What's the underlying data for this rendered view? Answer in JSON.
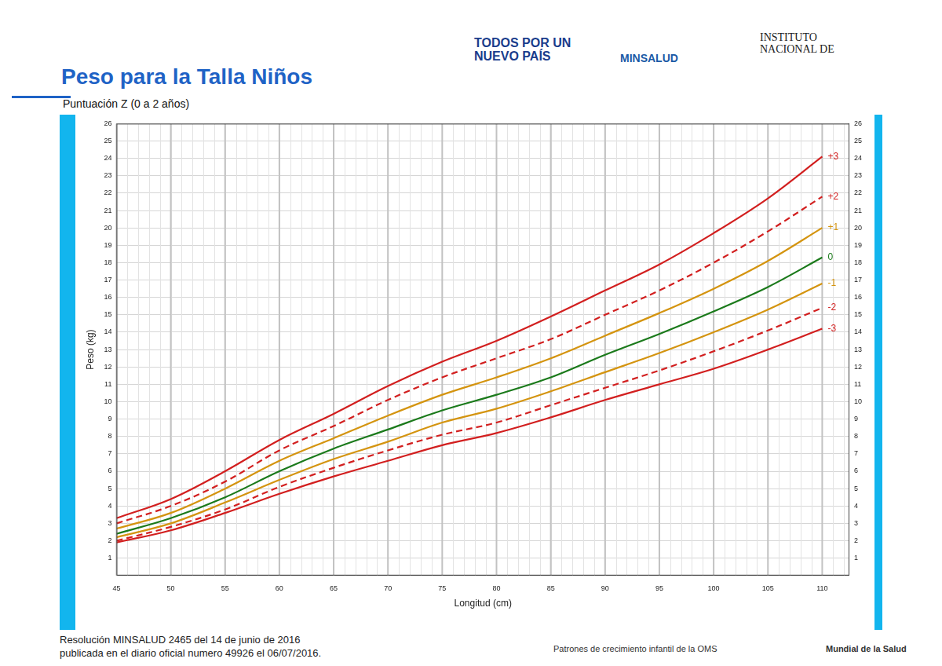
{
  "header": {
    "title": "Peso para la Talla Niños",
    "subtitle": "Puntuación Z (0 a 2 años)",
    "logos": [
      "TODOS POR UN NUEVO PAÍS",
      "MINSALUD",
      "INSTITUTO NACIONAL DE"
    ]
  },
  "chart_data": {
    "type": "line",
    "x_label": "Longitud (cm)",
    "y_label": "Peso (kg)",
    "x": [
      45,
      50,
      55,
      60,
      65,
      70,
      75,
      80,
      85,
      90,
      95,
      100,
      105,
      110
    ],
    "series": [
      {
        "name": "+3",
        "color": "#d21f1f",
        "line_style": "solid",
        "values": [
          3.3,
          4.4,
          6.0,
          7.8,
          9.3,
          10.9,
          12.3,
          13.5,
          14.9,
          16.4,
          17.9,
          19.7,
          21.7,
          24.1
        ]
      },
      {
        "name": "+2",
        "color": "#d21f1f",
        "line_style": "dashed",
        "values": [
          3.0,
          4.0,
          5.4,
          7.2,
          8.6,
          10.1,
          11.4,
          12.5,
          13.6,
          15.0,
          16.4,
          18.0,
          19.8,
          21.8
        ]
      },
      {
        "name": "+1",
        "color": "#d4940f",
        "line_style": "solid",
        "values": [
          2.7,
          3.6,
          5.0,
          6.6,
          7.9,
          9.2,
          10.4,
          11.4,
          12.5,
          13.8,
          15.1,
          16.5,
          18.1,
          20.0
        ]
      },
      {
        "name": "0",
        "color": "#1b7a1b",
        "line_style": "solid",
        "values": [
          2.4,
          3.3,
          4.5,
          6.0,
          7.3,
          8.4,
          9.5,
          10.4,
          11.4,
          12.7,
          13.9,
          15.2,
          16.6,
          18.3
        ]
      },
      {
        "name": "-1",
        "color": "#d4940f",
        "line_style": "solid",
        "values": [
          2.2,
          3.0,
          4.2,
          5.5,
          6.7,
          7.7,
          8.8,
          9.6,
          10.6,
          11.7,
          12.8,
          14.0,
          15.3,
          16.8
        ]
      },
      {
        "name": "-2",
        "color": "#d21f1f",
        "line_style": "dashed",
        "values": [
          2.0,
          2.8,
          3.8,
          5.1,
          6.2,
          7.2,
          8.1,
          8.8,
          9.8,
          10.8,
          11.8,
          12.9,
          14.1,
          15.4
        ]
      },
      {
        "name": "-3",
        "color": "#d21f1f",
        "line_style": "solid",
        "values": [
          1.9,
          2.6,
          3.6,
          4.7,
          5.7,
          6.6,
          7.5,
          8.2,
          9.1,
          10.1,
          11.0,
          11.9,
          13.0,
          14.2
        ]
      }
    ],
    "xlim": [
      45,
      112.5
    ],
    "xticks": [
      45,
      50,
      55,
      60,
      65,
      70,
      75,
      80,
      85,
      90,
      95,
      100,
      105,
      110
    ],
    "ylim": [
      0,
      26
    ],
    "yticks": [
      1,
      2,
      3,
      4,
      5,
      6,
      7,
      8,
      9,
      10,
      11,
      12,
      13,
      14,
      15,
      16,
      17,
      18,
      19,
      20,
      21,
      22,
      23,
      24,
      25,
      26
    ],
    "y2lim": [
      0,
      26
    ],
    "y2ticks": [
      1,
      2,
      3,
      4,
      5,
      6,
      7,
      8,
      9,
      10,
      11,
      12,
      13,
      14,
      15,
      16,
      17,
      18,
      19,
      20,
      21,
      22,
      23,
      24,
      25,
      26
    ],
    "grid": true
  },
  "footer": {
    "lines": [
      "Resolución MINSALUD 2465 del 14 de junio de 2016",
      "publicada en el diario oficial numero 49926 el 06/07/2016."
    ],
    "source": "Patrones de crecimiento infantil de la OMS",
    "organization": "Mundial de la Salud"
  }
}
